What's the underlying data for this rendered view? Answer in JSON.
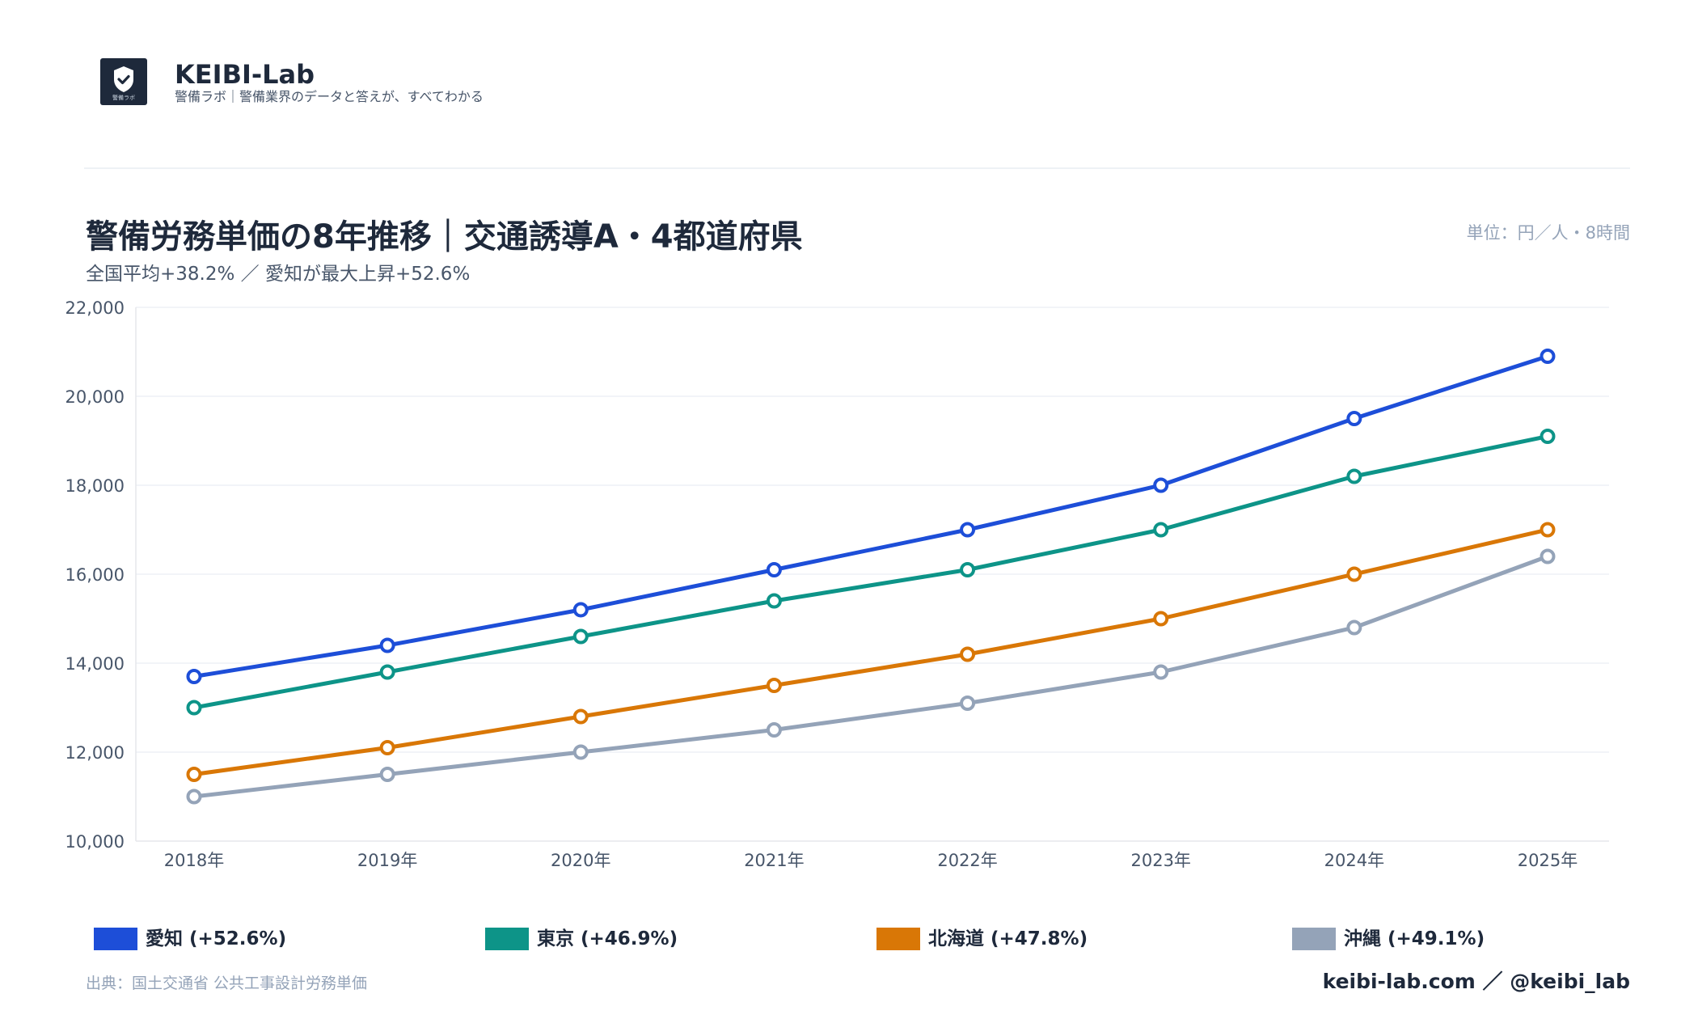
{
  "brand": {
    "name": "KEIBI-Lab",
    "tagline": "警備ラボ｜警備業界のデータと答えが、すべてわかる",
    "logo_caption": "警備ラボ",
    "logo_icon": "shield-check-icon"
  },
  "title": "警備労務単価の8年推移｜交通誘導A・4都道府県",
  "subtitle": "全国平均+38.2% ／ 愛知が最大上昇+52.6%",
  "unit": "単位：円／人・8時間",
  "source": "出典：国土交通省 公共工事設計労務単価",
  "footer": "keibi-lab.com ／ @keibi_lab",
  "legend": [
    {
      "label": "愛知 (+52.6%)",
      "color": "#1d4ed8"
    },
    {
      "label": "東京 (+46.9%)",
      "color": "#0d9488"
    },
    {
      "label": "北海道 (+47.8%)",
      "color": "#d97706"
    },
    {
      "label": "沖縄 (+49.1%)",
      "color": "#94a3b8"
    }
  ],
  "chart_data": {
    "type": "line",
    "title": "警備労務単価の8年推移｜交通誘導A・4都道府県",
    "categories": [
      "2018年",
      "2019年",
      "2020年",
      "2021年",
      "2022年",
      "2023年",
      "2024年",
      "2025年"
    ],
    "y_ticks": [
      "10,000",
      "12,000",
      "14,000",
      "16,000",
      "18,000",
      "20,000",
      "22,000"
    ],
    "ylim": [
      10000,
      22000
    ],
    "grid": true,
    "legend_position": "bottom",
    "series": [
      {
        "name": "愛知 (+52.6%)",
        "color": "#1d4ed8",
        "values": [
          13700,
          14400,
          15200,
          16100,
          17000,
          18000,
          19500,
          20900
        ]
      },
      {
        "name": "東京 (+46.9%)",
        "color": "#0d9488",
        "values": [
          13000,
          13800,
          14600,
          15400,
          16100,
          17000,
          18200,
          19100
        ]
      },
      {
        "name": "北海道 (+47.8%)",
        "color": "#d97706",
        "values": [
          11500,
          12100,
          12800,
          13500,
          14200,
          15000,
          16000,
          17000
        ]
      },
      {
        "name": "沖縄 (+49.1%)",
        "color": "#94a3b8",
        "values": [
          11000,
          11500,
          12000,
          12500,
          13100,
          13800,
          14800,
          16400
        ]
      }
    ]
  }
}
